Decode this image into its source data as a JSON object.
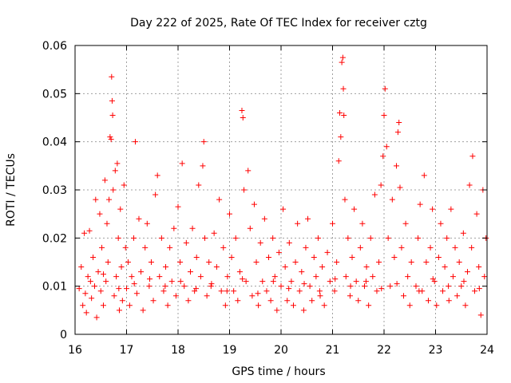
{
  "chart_data": {
    "type": "scatter",
    "title": "Day 222 of 2025, Rate Of TEC Index for receiver cztg",
    "xlabel": "GPS time / hours",
    "ylabel": "ROTI / TECUs",
    "xlim": [
      16,
      24
    ],
    "ylim": [
      0,
      0.06
    ],
    "xticks": [
      16,
      17,
      18,
      19,
      20,
      21,
      22,
      23,
      24
    ],
    "xtick_labels": [
      "16",
      "17",
      "18",
      "19",
      "20",
      "21",
      "22",
      "23",
      "24"
    ],
    "yticks": [
      0,
      0.01,
      0.02,
      0.03,
      0.04,
      0.05,
      0.06
    ],
    "ytick_labels": [
      "0",
      "0.01",
      "0.02",
      "0.03",
      "0.04",
      "0.05",
      "0.06"
    ],
    "grid": true,
    "marker": "+",
    "color": "#ff0000",
    "series": [
      {
        "name": "ROTI",
        "points": [
          [
            16.08,
            0.0095
          ],
          [
            16.12,
            0.014
          ],
          [
            16.15,
            0.006
          ],
          [
            16.18,
            0.021
          ],
          [
            16.2,
            0.0085
          ],
          [
            16.22,
            0.0045
          ],
          [
            16.25,
            0.012
          ],
          [
            16.28,
            0.0215
          ],
          [
            16.32,
            0.0075
          ],
          [
            16.35,
            0.016
          ],
          [
            16.38,
            0.01
          ],
          [
            16.4,
            0.028
          ],
          [
            16.42,
            0.0035
          ],
          [
            16.45,
            0.013
          ],
          [
            16.48,
            0.025
          ],
          [
            16.5,
            0.009
          ],
          [
            16.52,
            0.018
          ],
          [
            16.55,
            0.006
          ],
          [
            16.58,
            0.032
          ],
          [
            16.6,
            0.011
          ],
          [
            16.62,
            0.023
          ],
          [
            16.64,
            0.015
          ],
          [
            16.66,
            0.028
          ],
          [
            16.68,
            0.041
          ],
          [
            16.7,
            0.0405
          ],
          [
            16.71,
            0.0535
          ],
          [
            16.72,
            0.0485
          ],
          [
            16.73,
            0.0455
          ],
          [
            16.74,
            0.03
          ],
          [
            16.76,
            0.008
          ],
          [
            16.78,
            0.034
          ],
          [
            16.8,
            0.012
          ],
          [
            16.82,
            0.0355
          ],
          [
            16.84,
            0.02
          ],
          [
            16.86,
            0.005
          ],
          [
            16.88,
            0.026
          ],
          [
            16.9,
            0.014
          ],
          [
            16.92,
            0.007
          ],
          [
            16.95,
            0.031
          ],
          [
            16.98,
            0.018
          ],
          [
            17.0,
            0.0095
          ],
          [
            17.03,
            0.015
          ],
          [
            17.06,
            0.006
          ],
          [
            17.1,
            0.012
          ],
          [
            17.14,
            0.02
          ],
          [
            17.17,
            0.04
          ],
          [
            17.2,
            0.0085
          ],
          [
            17.24,
            0.024
          ],
          [
            17.28,
            0.013
          ],
          [
            17.32,
            0.005
          ],
          [
            17.36,
            0.018
          ],
          [
            17.4,
            0.023
          ],
          [
            17.44,
            0.01
          ],
          [
            17.48,
            0.015
          ],
          [
            17.52,
            0.007
          ],
          [
            17.56,
            0.029
          ],
          [
            17.6,
            0.033
          ],
          [
            17.64,
            0.012
          ],
          [
            17.68,
            0.02
          ],
          [
            17.72,
            0.009
          ],
          [
            17.76,
            0.014
          ],
          [
            17.8,
            0.006
          ],
          [
            17.84,
            0.018
          ],
          [
            17.88,
            0.011
          ],
          [
            17.92,
            0.022
          ],
          [
            17.96,
            0.008
          ],
          [
            18.0,
            0.0265
          ],
          [
            18.04,
            0.015
          ],
          [
            18.08,
            0.0355
          ],
          [
            18.12,
            0.01
          ],
          [
            18.16,
            0.019
          ],
          [
            18.2,
            0.007
          ],
          [
            18.24,
            0.013
          ],
          [
            18.28,
            0.022
          ],
          [
            18.32,
            0.009
          ],
          [
            18.36,
            0.016
          ],
          [
            18.4,
            0.031
          ],
          [
            18.44,
            0.012
          ],
          [
            18.48,
            0.035
          ],
          [
            18.5,
            0.04
          ],
          [
            18.52,
            0.02
          ],
          [
            18.56,
            0.008
          ],
          [
            18.6,
            0.015
          ],
          [
            18.64,
            0.01
          ],
          [
            18.7,
            0.021
          ],
          [
            18.75,
            0.014
          ],
          [
            18.8,
            0.028
          ],
          [
            18.84,
            0.009
          ],
          [
            18.88,
            0.018
          ],
          [
            18.92,
            0.006
          ],
          [
            18.96,
            0.012
          ],
          [
            19.0,
            0.025
          ],
          [
            19.04,
            0.016
          ],
          [
            19.08,
            0.009
          ],
          [
            19.12,
            0.02
          ],
          [
            19.16,
            0.007
          ],
          [
            19.2,
            0.013
          ],
          [
            19.24,
            0.0465
          ],
          [
            19.26,
            0.045
          ],
          [
            19.28,
            0.03
          ],
          [
            19.32,
            0.011
          ],
          [
            19.36,
            0.034
          ],
          [
            19.4,
            0.022
          ],
          [
            19.44,
            0.008
          ],
          [
            19.48,
            0.027
          ],
          [
            19.52,
            0.015
          ],
          [
            19.56,
            0.006
          ],
          [
            19.6,
            0.019
          ],
          [
            19.64,
            0.011
          ],
          [
            19.68,
            0.024
          ],
          [
            19.72,
            0.009
          ],
          [
            19.76,
            0.016
          ],
          [
            19.8,
            0.007
          ],
          [
            19.84,
            0.02
          ],
          [
            19.88,
            0.012
          ],
          [
            19.92,
            0.005
          ],
          [
            19.96,
            0.017
          ],
          [
            20.0,
            0.01
          ],
          [
            20.04,
            0.026
          ],
          [
            20.08,
            0.014
          ],
          [
            20.12,
            0.007
          ],
          [
            20.16,
            0.019
          ],
          [
            20.2,
            0.011
          ],
          [
            20.24,
            0.006
          ],
          [
            20.28,
            0.015
          ],
          [
            20.32,
            0.023
          ],
          [
            20.36,
            0.009
          ],
          [
            20.4,
            0.013
          ],
          [
            20.44,
            0.005
          ],
          [
            20.48,
            0.018
          ],
          [
            20.52,
            0.024
          ],
          [
            20.56,
            0.01
          ],
          [
            20.6,
            0.007
          ],
          [
            20.64,
            0.016
          ],
          [
            20.68,
            0.012
          ],
          [
            20.72,
            0.02
          ],
          [
            20.76,
            0.008
          ],
          [
            20.8,
            0.014
          ],
          [
            20.84,
            0.006
          ],
          [
            20.9,
            0.017
          ],
          [
            20.95,
            0.011
          ],
          [
            21.0,
            0.023
          ],
          [
            21.04,
            0.009
          ],
          [
            21.08,
            0.015
          ],
          [
            21.12,
            0.036
          ],
          [
            21.14,
            0.046
          ],
          [
            21.16,
            0.041
          ],
          [
            21.18,
            0.0565
          ],
          [
            21.2,
            0.0575
          ],
          [
            21.21,
            0.051
          ],
          [
            21.22,
            0.0455
          ],
          [
            21.24,
            0.028
          ],
          [
            21.26,
            0.012
          ],
          [
            21.3,
            0.02
          ],
          [
            21.34,
            0.008
          ],
          [
            21.38,
            0.016
          ],
          [
            21.42,
            0.026
          ],
          [
            21.46,
            0.011
          ],
          [
            21.5,
            0.007
          ],
          [
            21.54,
            0.018
          ],
          [
            21.58,
            0.023
          ],
          [
            21.62,
            0.01
          ],
          [
            21.66,
            0.014
          ],
          [
            21.7,
            0.006
          ],
          [
            21.74,
            0.02
          ],
          [
            21.78,
            0.012
          ],
          [
            21.82,
            0.029
          ],
          [
            21.86,
            0.009
          ],
          [
            21.9,
            0.015
          ],
          [
            21.94,
            0.031
          ],
          [
            21.98,
            0.037
          ],
          [
            22.0,
            0.0455
          ],
          [
            22.02,
            0.051
          ],
          [
            22.05,
            0.039
          ],
          [
            22.08,
            0.02
          ],
          [
            22.12,
            0.01
          ],
          [
            22.16,
            0.028
          ],
          [
            22.2,
            0.016
          ],
          [
            22.24,
            0.035
          ],
          [
            22.27,
            0.042
          ],
          [
            22.29,
            0.044
          ],
          [
            22.31,
            0.0305
          ],
          [
            22.34,
            0.018
          ],
          [
            22.38,
            0.008
          ],
          [
            22.42,
            0.023
          ],
          [
            22.46,
            0.012
          ],
          [
            22.5,
            0.006
          ],
          [
            22.53,
            0.015
          ],
          [
            22.62,
            0.01
          ],
          [
            22.66,
            0.02
          ],
          [
            22.7,
            0.027
          ],
          [
            22.74,
            0.009
          ],
          [
            22.78,
            0.033
          ],
          [
            22.82,
            0.015
          ],
          [
            22.86,
            0.007
          ],
          [
            22.9,
            0.018
          ],
          [
            22.94,
            0.026
          ],
          [
            22.98,
            0.011
          ],
          [
            23.02,
            0.006
          ],
          [
            23.06,
            0.016
          ],
          [
            23.1,
            0.023
          ],
          [
            23.14,
            0.009
          ],
          [
            23.18,
            0.014
          ],
          [
            23.22,
            0.02
          ],
          [
            23.26,
            0.007
          ],
          [
            23.3,
            0.026
          ],
          [
            23.34,
            0.012
          ],
          [
            23.38,
            0.018
          ],
          [
            23.42,
            0.008
          ],
          [
            23.46,
            0.015
          ],
          [
            23.5,
            0.01
          ],
          [
            23.54,
            0.021
          ],
          [
            23.58,
            0.006
          ],
          [
            23.62,
            0.013
          ],
          [
            23.66,
            0.031
          ],
          [
            23.7,
            0.018
          ],
          [
            23.72,
            0.037
          ],
          [
            23.76,
            0.009
          ],
          [
            23.8,
            0.025
          ],
          [
            23.84,
            0.014
          ],
          [
            23.88,
            0.004
          ],
          [
            23.92,
            0.03
          ],
          [
            23.95,
            0.012
          ],
          [
            23.98,
            0.02
          ],
          [
            16.3,
            0.011
          ],
          [
            16.55,
            0.0125
          ],
          [
            16.85,
            0.0095
          ],
          [
            17.15,
            0.0105
          ],
          [
            17.45,
            0.0115
          ],
          [
            17.75,
            0.01
          ],
          [
            18.05,
            0.011
          ],
          [
            18.35,
            0.0095
          ],
          [
            18.65,
            0.0105
          ],
          [
            18.95,
            0.009
          ],
          [
            19.25,
            0.0115
          ],
          [
            19.55,
            0.0085
          ],
          [
            19.85,
            0.011
          ],
          [
            20.15,
            0.0095
          ],
          [
            20.45,
            0.0105
          ],
          [
            20.75,
            0.009
          ],
          [
            21.05,
            0.0115
          ],
          [
            21.35,
            0.01
          ],
          [
            21.65,
            0.011
          ],
          [
            21.95,
            0.0095
          ],
          [
            22.25,
            0.0105
          ],
          [
            22.68,
            0.009
          ],
          [
            22.95,
            0.0115
          ],
          [
            23.25,
            0.01
          ],
          [
            23.55,
            0.011
          ],
          [
            23.85,
            0.0095
          ]
        ]
      }
    ]
  }
}
